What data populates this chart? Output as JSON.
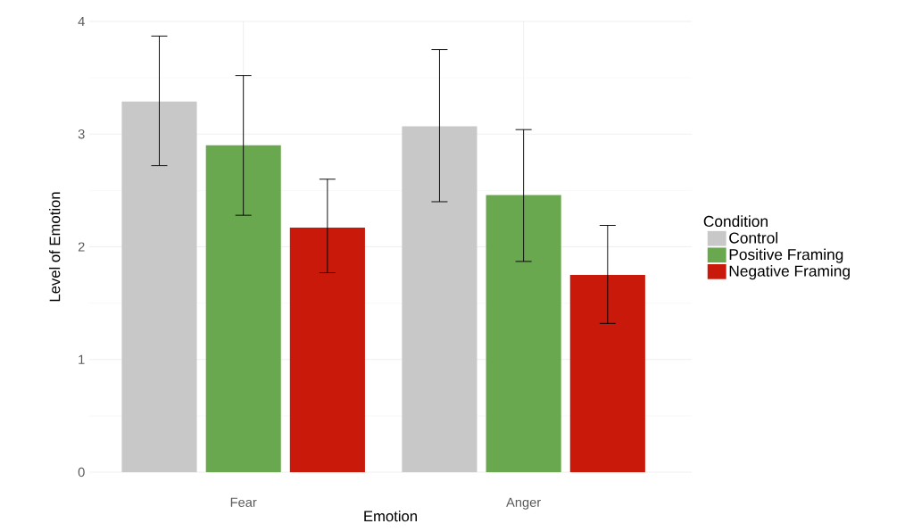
{
  "chart_data": {
    "type": "bar",
    "xlabel": "Emotion",
    "ylabel": "Level of Emotion",
    "legend_title": "Condition",
    "categories": [
      "Fear",
      "Anger"
    ],
    "series": [
      {
        "name": "Control",
        "color": "#c8c8c8",
        "values": [
          3.29,
          3.07
        ],
        "errors": [
          [
            2.72,
            3.87
          ],
          [
            2.4,
            3.75
          ]
        ]
      },
      {
        "name": "Positive Framing",
        "color": "#6aa84f",
        "values": [
          2.9,
          2.46
        ],
        "errors": [
          [
            2.28,
            3.52
          ],
          [
            1.87,
            3.04
          ]
        ]
      },
      {
        "name": "Negative Framing",
        "color": "#c8190a",
        "values": [
          2.17,
          1.75
        ],
        "errors": [
          [
            1.77,
            2.6
          ],
          [
            1.32,
            2.19
          ]
        ]
      }
    ],
    "ylim": [
      0,
      4
    ],
    "yticks": [
      0,
      1,
      2,
      3,
      4
    ],
    "grid": true,
    "legend": "right"
  }
}
